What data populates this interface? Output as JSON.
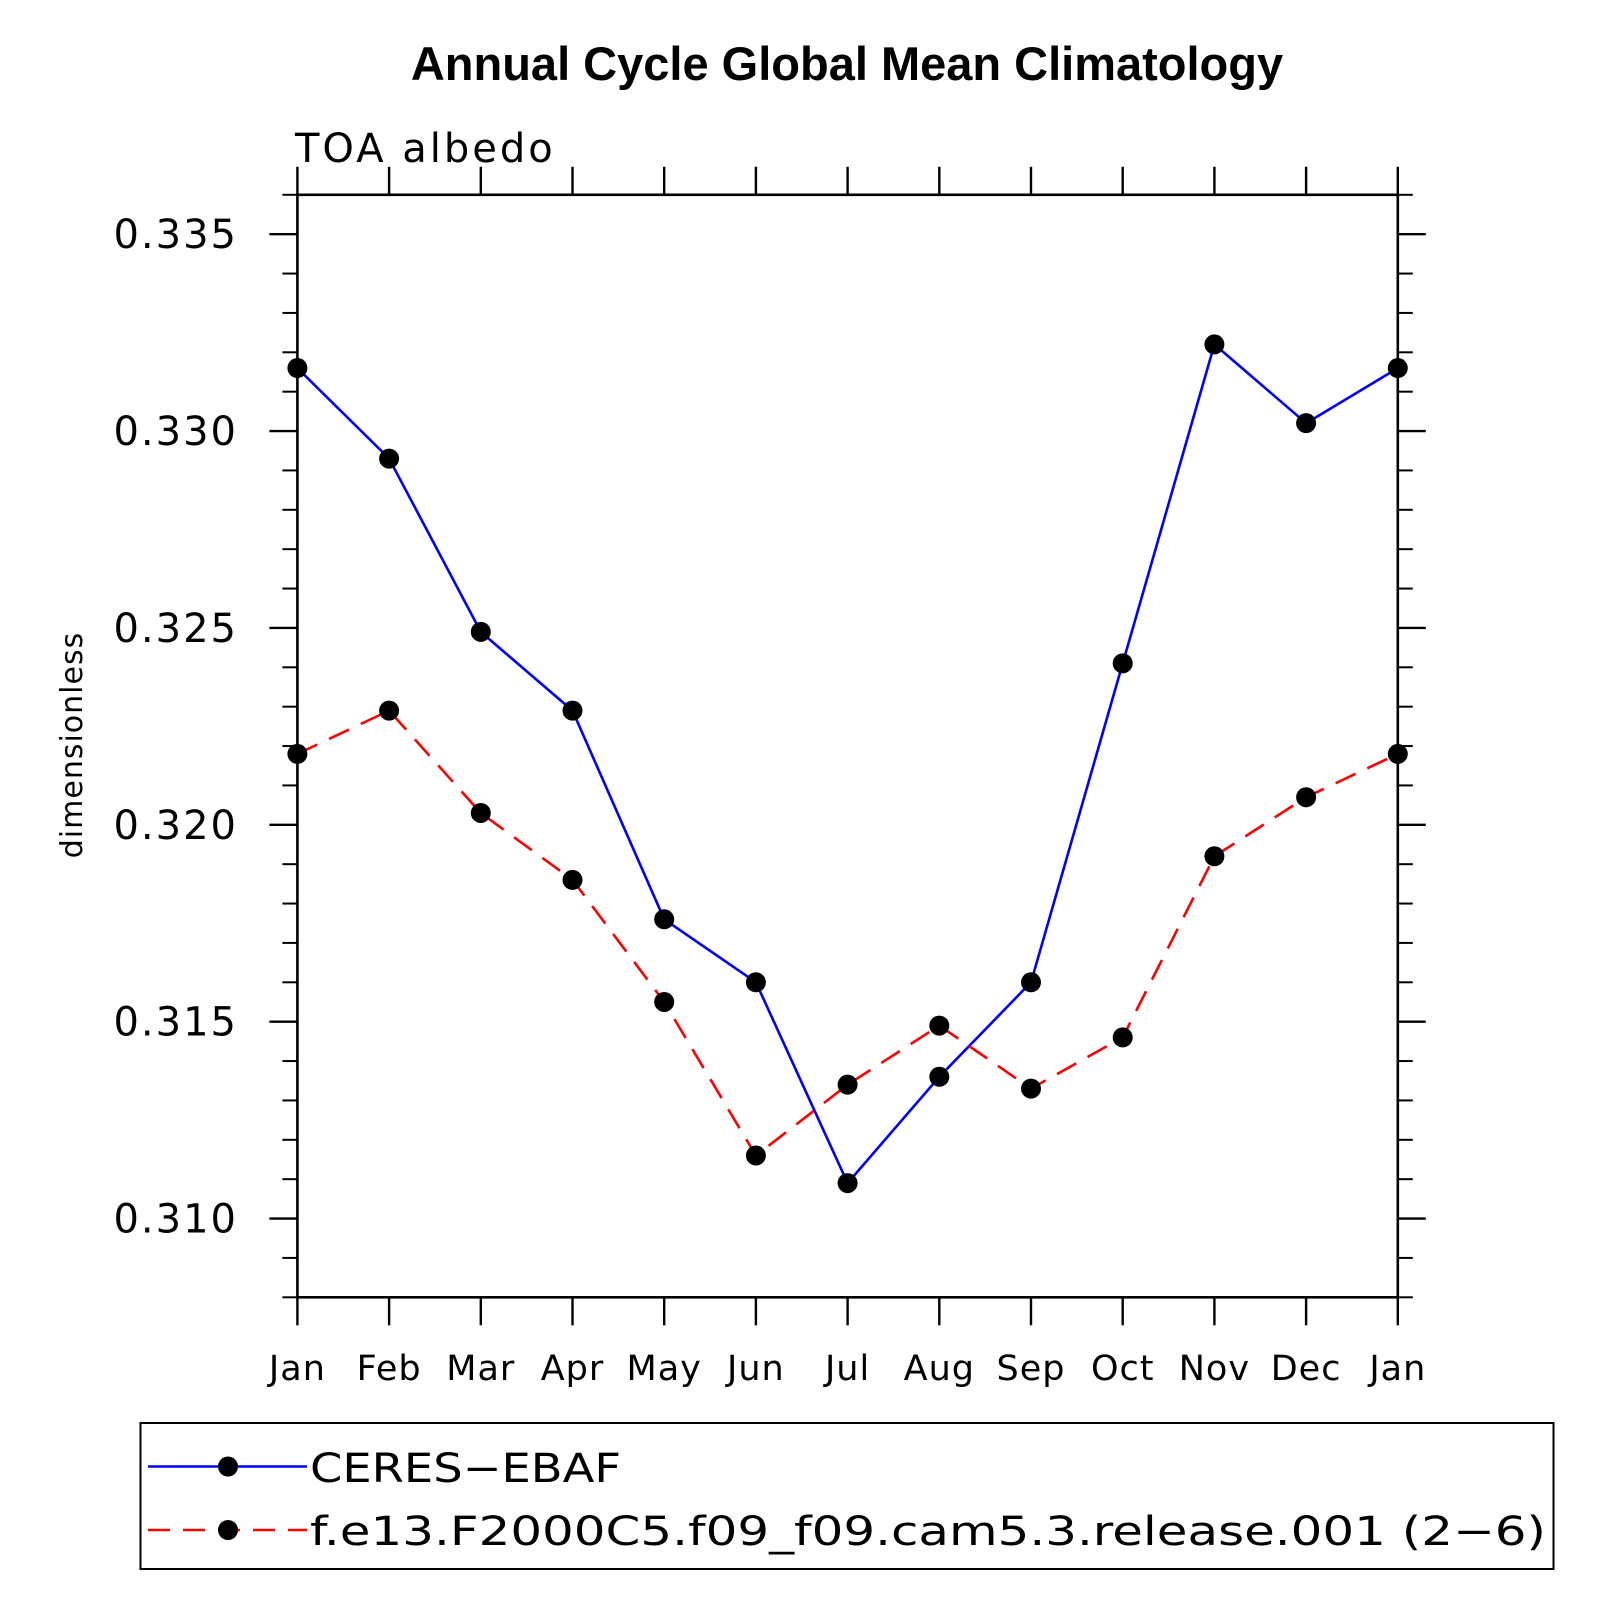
{
  "chart_data": {
    "type": "line",
    "title": "Annual Cycle Global Mean Climatology",
    "subtitle": "TOA albedo",
    "xlabel": "",
    "ylabel": "dimensionless",
    "categories": [
      "Jan",
      "Feb",
      "Mar",
      "Apr",
      "May",
      "Jun",
      "Jul",
      "Aug",
      "Sep",
      "Oct",
      "Nov",
      "Dec",
      "Jan"
    ],
    "ylim": [
      0.308,
      0.336
    ],
    "yticks": [
      0.31,
      0.315,
      0.32,
      0.325,
      0.33,
      0.335
    ],
    "ytick_labels": [
      "0.310",
      "0.315",
      "0.320",
      "0.325",
      "0.330",
      "0.335"
    ],
    "yminor_step": 0.001,
    "grid": false,
    "legend_position": "bottom",
    "series": [
      {
        "name": "CERES−EBAF",
        "color": "#0000ff",
        "line_style": "solid",
        "marker": "filled-circle",
        "marker_color": "#000000",
        "values": [
          0.3316,
          0.3293,
          0.3249,
          0.3229,
          0.3176,
          0.316,
          0.3109,
          0.3136,
          0.316,
          0.3241,
          0.3322,
          0.3302,
          0.3316
        ]
      },
      {
        "name": "f.e13.F2000C5.f09_f09.cam5.3.release.001 (2−6)",
        "color": "#ff0000",
        "line_style": "dashed",
        "marker": "filled-circle",
        "marker_color": "#000000",
        "values": [
          0.3218,
          0.3229,
          0.3203,
          0.3186,
          0.3155,
          0.3116,
          0.3134,
          0.3149,
          0.3133,
          0.3146,
          0.3192,
          0.3207,
          0.3218
        ]
      }
    ]
  }
}
